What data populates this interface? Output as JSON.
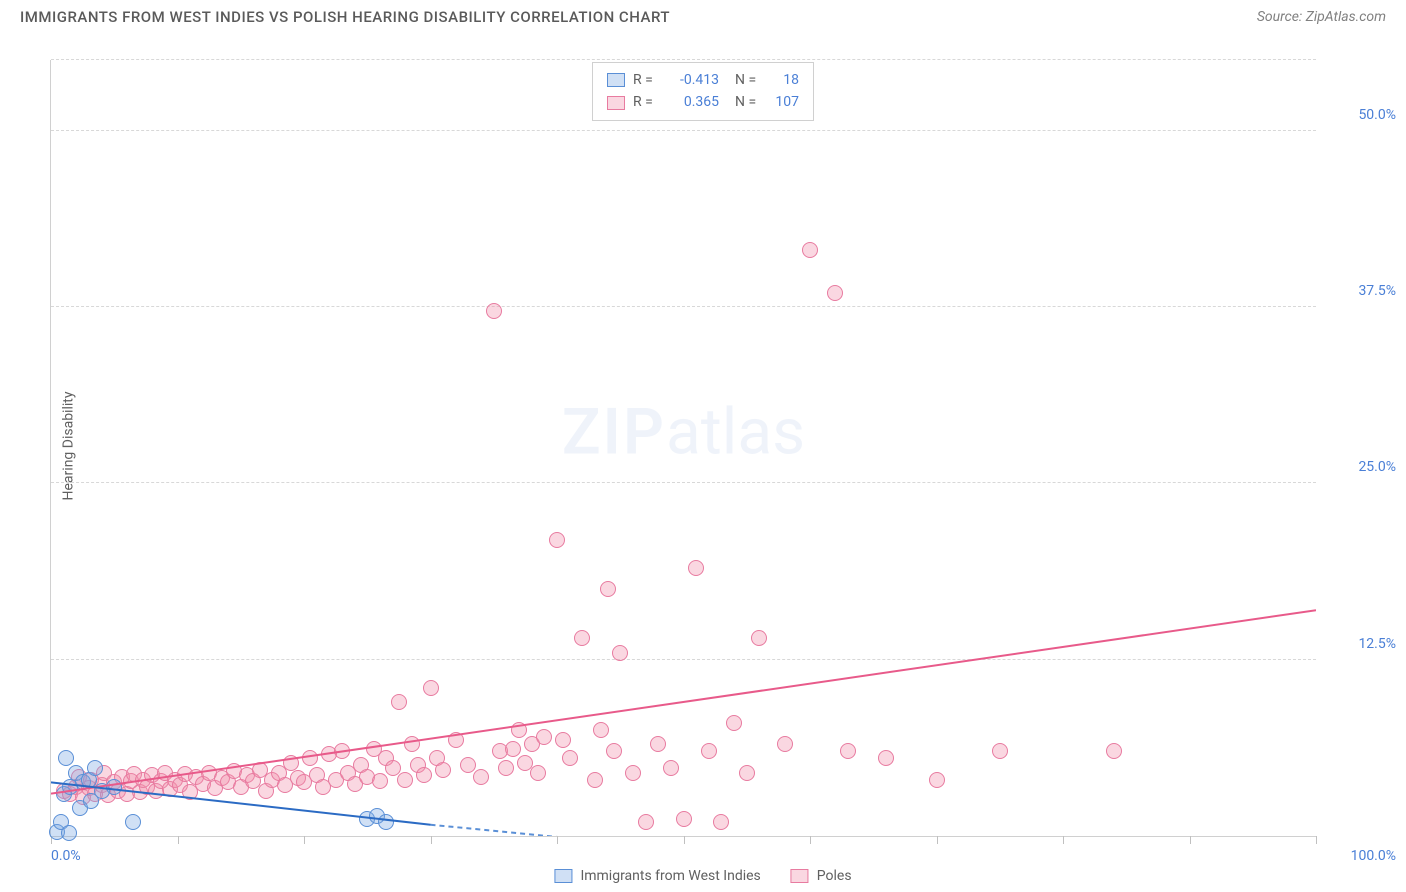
{
  "header": {
    "title": "IMMIGRANTS FROM WEST INDIES VS POLISH HEARING DISABILITY CORRELATION CHART",
    "source": "Source: ZipAtlas.com"
  },
  "watermark": {
    "zip": "ZIP",
    "atlas": "atlas"
  },
  "axes": {
    "y_label": "Hearing Disability",
    "x_min": 0,
    "x_max": 100,
    "y_min": 0,
    "y_max": 55,
    "y_ticks": [
      {
        "v": 12.5,
        "label": "12.5%"
      },
      {
        "v": 25.0,
        "label": "25.0%"
      },
      {
        "v": 37.5,
        "label": "37.5%"
      },
      {
        "v": 50.0,
        "label": "50.0%"
      }
    ],
    "x_ticks_major": [
      0,
      10,
      20,
      30,
      40,
      50,
      60,
      70,
      80,
      90,
      100
    ],
    "x_labels": [
      {
        "v": 0,
        "label": "0.0%"
      },
      {
        "v": 100,
        "label": "100.0%"
      }
    ],
    "grid_color": "#d8d8d8"
  },
  "series": {
    "blue": {
      "name": "Immigrants from West Indies",
      "fill": "rgba(120,165,225,0.35)",
      "stroke": "#5a8fd6",
      "line_color": "#2b6bc4",
      "r_value": "-0.413",
      "n_value": "18",
      "trend": {
        "x1": 0,
        "y1": 3.8,
        "x2": 30,
        "y2": 0.8,
        "dash_x2": 45,
        "dash_y2": -0.5
      },
      "points": [
        {
          "x": 0.5,
          "y": 0.3
        },
        {
          "x": 0.8,
          "y": 1.0
        },
        {
          "x": 1.0,
          "y": 3.0
        },
        {
          "x": 1.2,
          "y": 5.5
        },
        {
          "x": 1.5,
          "y": 3.5
        },
        {
          "x": 1.4,
          "y": 0.2
        },
        {
          "x": 2.0,
          "y": 4.5
        },
        {
          "x": 2.3,
          "y": 2.0
        },
        {
          "x": 2.5,
          "y": 3.8
        },
        {
          "x": 3.0,
          "y": 4.0
        },
        {
          "x": 3.2,
          "y": 2.5
        },
        {
          "x": 3.5,
          "y": 4.8
        },
        {
          "x": 4.0,
          "y": 3.2
        },
        {
          "x": 5.0,
          "y": 3.5
        },
        {
          "x": 6.5,
          "y": 1.0
        },
        {
          "x": 25.0,
          "y": 1.2
        },
        {
          "x": 25.8,
          "y": 1.4
        },
        {
          "x": 26.5,
          "y": 1.0
        }
      ]
    },
    "pink": {
      "name": "Poles",
      "fill": "rgba(240,140,170,0.35)",
      "stroke": "#e87ba0",
      "line_color": "#e85a8a",
      "r_value": "0.365",
      "n_value": "107",
      "trend": {
        "x1": 0,
        "y1": 3.0,
        "x2": 100,
        "y2": 16.0
      },
      "points": [
        {
          "x": 1,
          "y": 3.2
        },
        {
          "x": 1.5,
          "y": 3.0
        },
        {
          "x": 2,
          "y": 3.5
        },
        {
          "x": 2.2,
          "y": 4.2
        },
        {
          "x": 2.5,
          "y": 2.8
        },
        {
          "x": 3,
          "y": 3.4
        },
        {
          "x": 3.2,
          "y": 4.0
        },
        {
          "x": 3.5,
          "y": 3.0
        },
        {
          "x": 4,
          "y": 3.6
        },
        {
          "x": 4.2,
          "y": 4.5
        },
        {
          "x": 4.5,
          "y": 2.9
        },
        {
          "x": 5,
          "y": 3.8
        },
        {
          "x": 5.3,
          "y": 3.2
        },
        {
          "x": 5.6,
          "y": 4.2
        },
        {
          "x": 6,
          "y": 3.0
        },
        {
          "x": 6.3,
          "y": 3.9
        },
        {
          "x": 6.6,
          "y": 4.4
        },
        {
          "x": 7,
          "y": 3.1
        },
        {
          "x": 7.3,
          "y": 4.0
        },
        {
          "x": 7.6,
          "y": 3.5
        },
        {
          "x": 8,
          "y": 4.3
        },
        {
          "x": 8.3,
          "y": 3.2
        },
        {
          "x": 8.7,
          "y": 3.9
        },
        {
          "x": 9,
          "y": 4.5
        },
        {
          "x": 9.4,
          "y": 3.3
        },
        {
          "x": 9.8,
          "y": 4.0
        },
        {
          "x": 10.2,
          "y": 3.6
        },
        {
          "x": 10.6,
          "y": 4.4
        },
        {
          "x": 11,
          "y": 3.1
        },
        {
          "x": 11.5,
          "y": 4.2
        },
        {
          "x": 12,
          "y": 3.7
        },
        {
          "x": 12.5,
          "y": 4.5
        },
        {
          "x": 13,
          "y": 3.4
        },
        {
          "x": 13.5,
          "y": 4.1
        },
        {
          "x": 14,
          "y": 3.8
        },
        {
          "x": 14.5,
          "y": 4.6
        },
        {
          "x": 15,
          "y": 3.5
        },
        {
          "x": 15.5,
          "y": 4.3
        },
        {
          "x": 16,
          "y": 3.9
        },
        {
          "x": 16.5,
          "y": 4.7
        },
        {
          "x": 17,
          "y": 3.2
        },
        {
          "x": 17.5,
          "y": 4.0
        },
        {
          "x": 18,
          "y": 4.5
        },
        {
          "x": 18.5,
          "y": 3.6
        },
        {
          "x": 19,
          "y": 5.2
        },
        {
          "x": 19.5,
          "y": 4.1
        },
        {
          "x": 20,
          "y": 3.8
        },
        {
          "x": 20.5,
          "y": 5.5
        },
        {
          "x": 21,
          "y": 4.3
        },
        {
          "x": 21.5,
          "y": 3.5
        },
        {
          "x": 22,
          "y": 5.8
        },
        {
          "x": 22.5,
          "y": 4.0
        },
        {
          "x": 23,
          "y": 6.0
        },
        {
          "x": 23.5,
          "y": 4.5
        },
        {
          "x": 24,
          "y": 3.7
        },
        {
          "x": 24.5,
          "y": 5.0
        },
        {
          "x": 25,
          "y": 4.2
        },
        {
          "x": 25.5,
          "y": 6.2
        },
        {
          "x": 26,
          "y": 3.9
        },
        {
          "x": 26.5,
          "y": 5.5
        },
        {
          "x": 27,
          "y": 4.8
        },
        {
          "x": 27.5,
          "y": 9.5
        },
        {
          "x": 28,
          "y": 4.0
        },
        {
          "x": 28.5,
          "y": 6.5
        },
        {
          "x": 29,
          "y": 5.0
        },
        {
          "x": 29.5,
          "y": 4.3
        },
        {
          "x": 30,
          "y": 10.5
        },
        {
          "x": 30.5,
          "y": 5.5
        },
        {
          "x": 31,
          "y": 4.7
        },
        {
          "x": 32,
          "y": 6.8
        },
        {
          "x": 33,
          "y": 5.0
        },
        {
          "x": 34,
          "y": 4.2
        },
        {
          "x": 35,
          "y": 37.2
        },
        {
          "x": 35.5,
          "y": 6.0
        },
        {
          "x": 36,
          "y": 4.8
        },
        {
          "x": 36.5,
          "y": 6.2
        },
        {
          "x": 37,
          "y": 7.5
        },
        {
          "x": 37.5,
          "y": 5.2
        },
        {
          "x": 38,
          "y": 6.5
        },
        {
          "x": 38.5,
          "y": 4.5
        },
        {
          "x": 39,
          "y": 7.0
        },
        {
          "x": 40,
          "y": 21.0
        },
        {
          "x": 40.5,
          "y": 6.8
        },
        {
          "x": 41,
          "y": 5.5
        },
        {
          "x": 42,
          "y": 14.0
        },
        {
          "x": 43,
          "y": 4.0
        },
        {
          "x": 43.5,
          "y": 7.5
        },
        {
          "x": 44,
          "y": 17.5
        },
        {
          "x": 44.5,
          "y": 6.0
        },
        {
          "x": 45,
          "y": 13.0
        },
        {
          "x": 46,
          "y": 4.5
        },
        {
          "x": 47,
          "y": 1.0
        },
        {
          "x": 48,
          "y": 6.5
        },
        {
          "x": 49,
          "y": 4.8
        },
        {
          "x": 50,
          "y": 1.2
        },
        {
          "x": 51,
          "y": 19.0
        },
        {
          "x": 52,
          "y": 6.0
        },
        {
          "x": 53,
          "y": 1.0
        },
        {
          "x": 54,
          "y": 8.0
        },
        {
          "x": 55,
          "y": 4.5
        },
        {
          "x": 56,
          "y": 14.0
        },
        {
          "x": 58,
          "y": 6.5
        },
        {
          "x": 60,
          "y": 41.5
        },
        {
          "x": 62,
          "y": 38.5
        },
        {
          "x": 63,
          "y": 6.0
        },
        {
          "x": 66,
          "y": 5.5
        },
        {
          "x": 70,
          "y": 4.0
        },
        {
          "x": 75,
          "y": 6.0
        },
        {
          "x": 84,
          "y": 6.0
        }
      ]
    }
  },
  "legend_bottom": {
    "item1": "Immigrants from West Indies",
    "item2": "Poles"
  }
}
